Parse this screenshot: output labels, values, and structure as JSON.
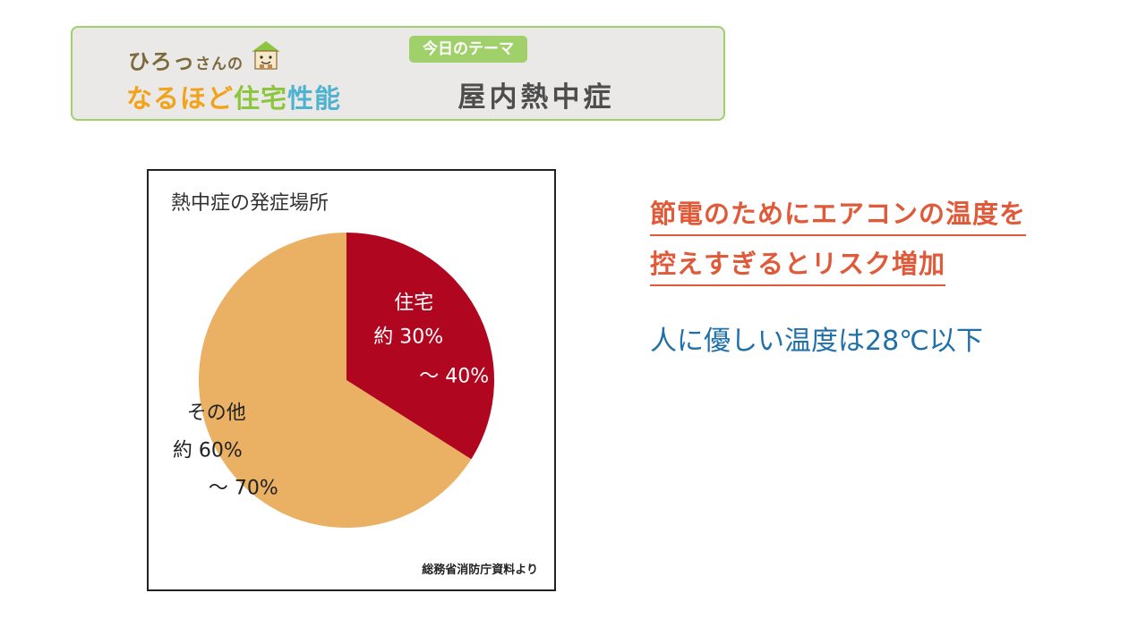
{
  "header": {
    "brand_line1": "ひろっ",
    "brand_line1_small": "さんの",
    "brand_line2_parts": [
      {
        "text": "なるほど",
        "color": "#f0a31b"
      },
      {
        "text": "住宅",
        "color": "#8cc63f"
      },
      {
        "text": "性能",
        "color": "#4fb3cf"
      }
    ],
    "theme_tag": "今日のテーマ",
    "theme_title": "屋内熱中症",
    "colors": {
      "border": "#9fd06a",
      "background": "#ebe9e7"
    }
  },
  "message": {
    "line1": "節電のためにエアコンの温度を",
    "line2": "控えすぎるとリスク増加",
    "sub": "人に優しい温度は28℃以下",
    "colors": {
      "accent": "#e05a3a",
      "sub": "#1f6fa8"
    }
  },
  "chart_data": {
    "type": "pie",
    "title": "熱中症の発症場所",
    "source": "総務省消防庁資料より",
    "slices": [
      {
        "label": "住宅",
        "range_text": "約 30%",
        "range_text2": "〜 40%",
        "value": 34,
        "color": "#b0061f"
      },
      {
        "label": "その他",
        "range_text": "約 60%",
        "range_text2": "〜 70%",
        "value": 66,
        "color": "#eab064"
      }
    ],
    "start_angle_deg": 0,
    "legend": "none"
  }
}
